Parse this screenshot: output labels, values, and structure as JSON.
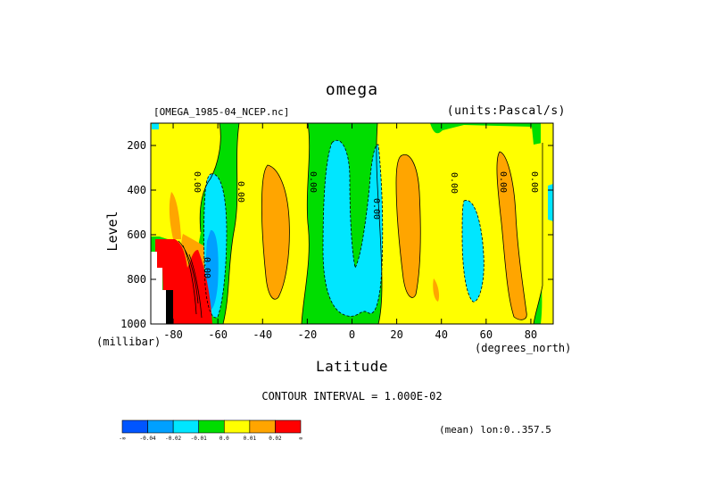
{
  "chart_data": {
    "type": "heatmap",
    "title": "omega",
    "source_file": "[OMEGA_1985-04_NCEP.nc]",
    "units": "(units:Pascal/s)",
    "xlabel": "Latitude",
    "xunit": "(degrees_north)",
    "ylabel": "Level",
    "yunit": "(millibar)",
    "xlim": [
      -90,
      90
    ],
    "ylim": [
      1000,
      100
    ],
    "x_ticks": [
      -80,
      -60,
      -40,
      -20,
      0,
      20,
      40,
      60,
      80
    ],
    "y_ticks": [
      200,
      400,
      600,
      800,
      1000
    ],
    "contour_interval": "CONTOUR INTERVAL = 1.000E-02",
    "mean_note": "(mean) lon:0..357.5",
    "contour_labels": [
      "0.00",
      "0.00",
      "0.00",
      "0.00",
      "0.00",
      "0.00",
      "0.00",
      "0.00"
    ],
    "colorbar": {
      "colors": [
        "#0055ff",
        "#00a0ff",
        "#00e6ff",
        "#00dd00",
        "#ffff00",
        "#ffa500",
        "#ff0000"
      ],
      "labels": [
        "-∞",
        "-0.04",
        "-0.02",
        "-0.01",
        "0.0",
        "0.01",
        "0.02",
        "∞"
      ]
    }
  },
  "colors": {
    "neg_strong": "#0055ff",
    "neg_mid": "#00a0ff",
    "neg_weak": "#00e6ff",
    "near_zero_neg": "#00dd00",
    "near_zero_pos": "#ffff00",
    "pos_mid": "#ffa500",
    "pos_strong": "#ff0000"
  }
}
